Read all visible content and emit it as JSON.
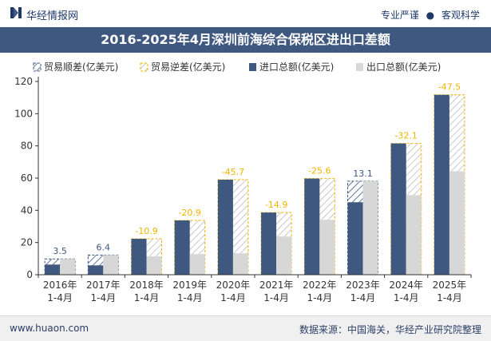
{
  "header": {
    "brand": "华经情报网",
    "slogan_left": "专业严谨",
    "slogan_dot": "●",
    "slogan_right": "客观科学"
  },
  "colors": {
    "import": "#3f5880",
    "export": "#d7d7d7",
    "surplus_stroke": "#3f5880",
    "deficit_stroke": "#f2b400",
    "surplus_label": "#3f5880",
    "deficit_label": "#f2b400",
    "title_bg": "#3f5880"
  },
  "chart_data": {
    "type": "bar",
    "title": "2016-2025年4月深圳前海综合保税区进出口差额",
    "categories_line1": [
      "2016年",
      "2017年",
      "2018年",
      "2019年",
      "2020年",
      "2021年",
      "2022年",
      "2023年",
      "2024年",
      "2025年"
    ],
    "categories_line2": [
      "1-4月",
      "1-4月",
      "1-4月",
      "1-4月",
      "1-4月",
      "1-4月",
      "1-4月",
      "1-4月",
      "1-4月",
      "1-4月"
    ],
    "series": [
      {
        "name": "进口总额(亿美元)",
        "values": [
          6.3,
          5.8,
          22.3,
          33.7,
          59.0,
          38.6,
          59.7,
          45.0,
          81.5,
          111.7
        ]
      },
      {
        "name": "出口总额(亿美元)",
        "values": [
          9.8,
          12.2,
          11.4,
          12.8,
          13.3,
          23.7,
          34.1,
          58.1,
          49.4,
          64.2
        ]
      }
    ],
    "balance": [
      3.5,
      6.4,
      -10.9,
      -20.9,
      -45.7,
      -14.9,
      -25.6,
      13.1,
      -32.1,
      -47.5
    ],
    "balance_labels": [
      "3.5",
      "6.4",
      "-10.9",
      "-20.9",
      "-45.7",
      "-14.9",
      "-25.6",
      "13.1",
      "-32.1",
      "-47.5"
    ],
    "legend": [
      "贸易顺差(亿美元)",
      "贸易逆差(亿美元)",
      "进口总额(亿美元)",
      "出口总额(亿美元)"
    ],
    "ylim": [
      0,
      120
    ],
    "yticks": [
      0,
      20,
      40,
      60,
      80,
      100,
      120
    ],
    "ytick_labels": [
      "0",
      "20",
      "40",
      "60",
      "80",
      "100",
      "120"
    ],
    "grid": false
  },
  "footer": {
    "url": "www.huaon.com",
    "source": "数据来源：中国海关，华经产业研究院整理"
  }
}
